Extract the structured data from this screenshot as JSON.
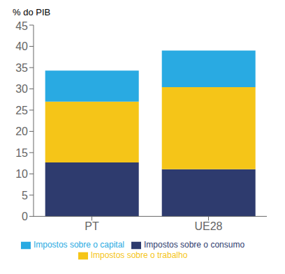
{
  "chart_data": {
    "type": "bar",
    "stacked": true,
    "categories": [
      "PT",
      "UE28"
    ],
    "series": [
      {
        "name": "Impostos sobre o consumo",
        "color": "#2e3b6e",
        "values": [
          12.7,
          11.1
        ]
      },
      {
        "name": "Impostos sobre o trabalho",
        "color": "#f5c518",
        "values": [
          14.3,
          19.3
        ]
      },
      {
        "name": "Impostos sobre o capital",
        "color": "#29aae2",
        "values": [
          7.3,
          8.6
        ]
      }
    ],
    "ylabel": "% do PIB",
    "ylim": [
      0,
      45
    ],
    "yticks": [
      0,
      5,
      10,
      15,
      20,
      25,
      30,
      35,
      40,
      45
    ],
    "grid": false,
    "legend": "bottom"
  }
}
